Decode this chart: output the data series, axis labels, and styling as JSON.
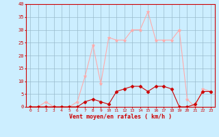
{
  "hours": [
    0,
    1,
    2,
    3,
    4,
    5,
    6,
    7,
    8,
    9,
    10,
    11,
    12,
    13,
    14,
    15,
    16,
    17,
    18,
    19,
    20,
    21,
    22,
    23
  ],
  "vent_moyen": [
    0,
    0,
    0,
    0,
    0,
    0,
    0,
    2,
    3,
    2,
    1,
    6,
    7,
    8,
    8,
    6,
    8,
    8,
    7,
    0,
    0,
    1,
    6,
    6
  ],
  "rafales": [
    0,
    0,
    2,
    0,
    0,
    0,
    2,
    12,
    24,
    9,
    27,
    26,
    26,
    30,
    30,
    37,
    26,
    26,
    26,
    30,
    3,
    0,
    7,
    6
  ],
  "xlabel": "Vent moyen/en rafales ( km/h )",
  "ylim": [
    0,
    40
  ],
  "xlim": [
    -0.5,
    23.5
  ],
  "yticks": [
    0,
    5,
    10,
    15,
    20,
    25,
    30,
    35,
    40
  ],
  "xticks": [
    0,
    1,
    2,
    3,
    4,
    5,
    6,
    7,
    8,
    9,
    10,
    11,
    12,
    13,
    14,
    15,
    16,
    17,
    18,
    19,
    20,
    21,
    22,
    23
  ],
  "color_moyen": "#cc0000",
  "color_rafales": "#ffaaaa",
  "bg_color": "#cceeff",
  "grid_color": "#99bbcc"
}
